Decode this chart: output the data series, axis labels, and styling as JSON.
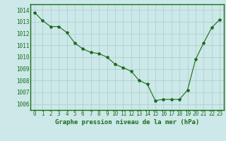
{
  "x": [
    0,
    1,
    2,
    3,
    4,
    5,
    6,
    7,
    8,
    9,
    10,
    11,
    12,
    13,
    14,
    15,
    16,
    17,
    18,
    19,
    20,
    21,
    22,
    23
  ],
  "y": [
    1013.8,
    1013.1,
    1012.6,
    1012.6,
    1012.1,
    1011.2,
    1010.7,
    1010.4,
    1010.3,
    1010.0,
    1009.4,
    1009.1,
    1008.8,
    1008.0,
    1007.7,
    1006.3,
    1006.4,
    1006.4,
    1006.4,
    1007.2,
    1009.8,
    1011.2,
    1012.5,
    1013.2
  ],
  "line_color": "#1a6b1a",
  "marker": "*",
  "marker_size": 3,
  "bg_color": "#cce8e8",
  "grid_color": "#aacccc",
  "ylim_min": 1005.5,
  "ylim_max": 1014.5,
  "xlim_min": -0.5,
  "xlim_max": 23.5,
  "yticks": [
    1006,
    1007,
    1008,
    1009,
    1010,
    1011,
    1012,
    1013,
    1014
  ],
  "xticks": [
    0,
    1,
    2,
    3,
    4,
    5,
    6,
    7,
    8,
    9,
    10,
    11,
    12,
    13,
    14,
    15,
    16,
    17,
    18,
    19,
    20,
    21,
    22,
    23
  ],
  "xlabel": "Graphe pression niveau de la mer (hPa)",
  "xlabel_fontsize": 6.5,
  "tick_fontsize": 5.5,
  "border_color": "#1a6b1a",
  "text_color": "#1a6b1a"
}
